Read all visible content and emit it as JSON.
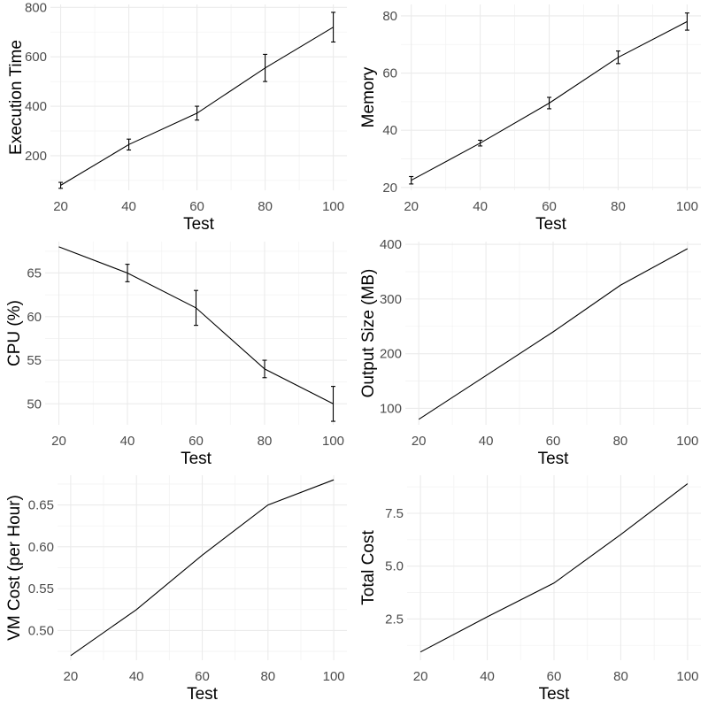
{
  "chart_data": [
    {
      "type": "line",
      "xlabel": "Test",
      "ylabel": "Execution Time",
      "x": [
        20,
        40,
        60,
        80,
        100
      ],
      "y": [
        80,
        245,
        372,
        555,
        720
      ],
      "error": [
        12,
        22,
        28,
        55,
        60
      ],
      "xticks": [
        "20",
        "40",
        "60",
        "80",
        "100"
      ],
      "yticks": [
        "200",
        "400",
        "600",
        "800"
      ],
      "xlim": [
        17,
        104
      ],
      "ylim": [
        60,
        812
      ],
      "grid": true
    },
    {
      "type": "line",
      "xlabel": "Test",
      "ylabel": "Memory",
      "x": [
        20,
        40,
        60,
        80,
        100
      ],
      "y": [
        22.5,
        35.5,
        49.5,
        65.5,
        78
      ],
      "error": [
        1.3,
        1.0,
        2.0,
        2.2,
        3.0
      ],
      "xticks": [
        "20",
        "40",
        "60",
        "80",
        "100"
      ],
      "yticks": [
        "20",
        "40",
        "60",
        "80"
      ],
      "xlim": [
        17,
        104
      ],
      "ylim": [
        19,
        84
      ],
      "grid": true
    },
    {
      "type": "line",
      "xlabel": "Test",
      "ylabel": "CPU (%)",
      "x": [
        20,
        40,
        60,
        80,
        100
      ],
      "y": [
        68,
        65,
        61,
        54,
        50
      ],
      "error": [
        0,
        1,
        2,
        1,
        2
      ],
      "xticks": [
        "20",
        "40",
        "60",
        "80",
        "100"
      ],
      "yticks": [
        "50",
        "55",
        "60",
        "65"
      ],
      "xlim": [
        16,
        104
      ],
      "ylim": [
        47.6,
        68.6
      ],
      "grid": true
    },
    {
      "type": "line",
      "xlabel": "Test",
      "ylabel": "Output Size (MB)",
      "x": [
        20,
        40,
        60,
        80,
        100
      ],
      "y": [
        80,
        160,
        240,
        325,
        392
      ],
      "xticks": [
        "20",
        "40",
        "60",
        "80",
        "100"
      ],
      "yticks": [
        "100",
        "200",
        "300",
        "400"
      ],
      "xlim": [
        16,
        104
      ],
      "ylim": [
        70,
        405
      ],
      "grid": true
    },
    {
      "type": "line",
      "xlabel": "Test",
      "ylabel": "VM Cost (per Hour)",
      "x": [
        20,
        40,
        60,
        80,
        100
      ],
      "y": [
        0.47,
        0.525,
        0.59,
        0.65,
        0.68
      ],
      "xticks": [
        "20",
        "40",
        "60",
        "80",
        "100"
      ],
      "yticks": [
        "0.50",
        "0.55",
        "0.60",
        "0.65"
      ],
      "xlim": [
        16,
        104
      ],
      "ylim": [
        0.4645,
        0.6855
      ],
      "grid": true
    },
    {
      "type": "line",
      "xlabel": "Test",
      "ylabel": "Total Cost",
      "x": [
        20,
        40,
        60,
        80,
        100
      ],
      "y": [
        0.94,
        2.6,
        4.2,
        6.5,
        8.9
      ],
      "xticks": [
        "20",
        "40",
        "60",
        "80",
        "100"
      ],
      "yticks": [
        "2.5",
        "5.0",
        "7.5"
      ],
      "xlim": [
        16,
        104
      ],
      "ylim": [
        0.55,
        9.3
      ],
      "grid": true
    }
  ]
}
